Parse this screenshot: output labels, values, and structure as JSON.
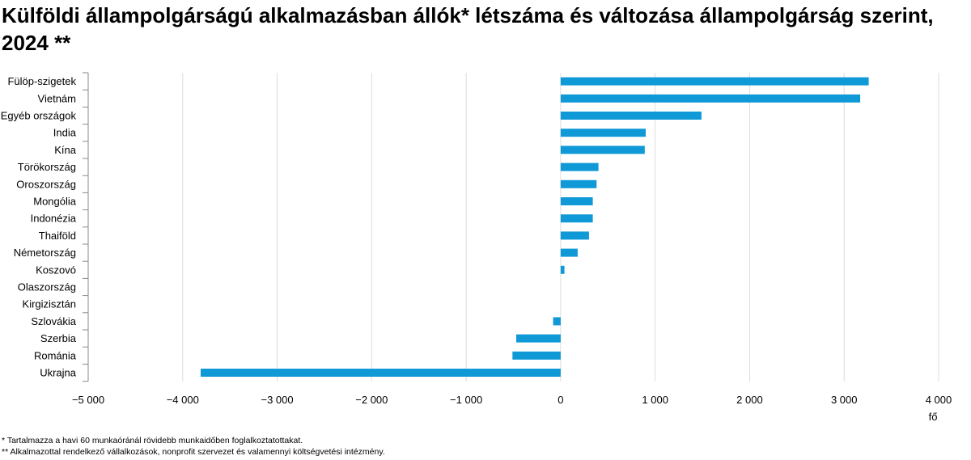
{
  "chart_data": {
    "type": "bar",
    "orientation": "horizontal",
    "title": "Külföldi állampolgárságú alkalmazásban állók* létszáma és változása állampolgárság szerint, 2024 **",
    "xlabel": "fő",
    "ylabel": "",
    "xlim": [
      -5000,
      4000
    ],
    "xticks": [
      -5000,
      -4000,
      -3000,
      -2000,
      -1000,
      0,
      1000,
      2000,
      3000,
      4000
    ],
    "xtick_labels": [
      "−5 000",
      "−4 000",
      "−3 000",
      "−2 000",
      "−1 000",
      "0",
      "1 000",
      "2 000",
      "3 000",
      "4 000"
    ],
    "grid": true,
    "legend": "none",
    "categories": [
      "Fülöp-szigetek",
      "Vietnám",
      "Egyéb országok",
      "India",
      "Kína",
      "Törökország",
      "Oroszország",
      "Mongólia",
      "Indonézia",
      "Thaiföld",
      "Németország",
      "Koszovó",
      "Olaszország",
      "Kirgizisztán",
      "Szlovákia",
      "Szerbia",
      "Románia",
      "Ukrajna"
    ],
    "series": [
      {
        "name": "Változás",
        "color": "#0f9ad7",
        "values": [
          3260,
          3170,
          1490,
          900,
          890,
          400,
          380,
          340,
          340,
          300,
          180,
          40,
          0,
          0,
          -80,
          -470,
          -510,
          -3810
        ]
      }
    ]
  },
  "footnotes": {
    "note1": "* Tartalmazza a havi 60 munkaóránál rövidebb munkaidőben foglalkoztatottakat.",
    "note2": "** Alkalmazottal rendelkező vállalkozások, nonprofit szervezet és valamennyi költségvetési intézmény."
  }
}
